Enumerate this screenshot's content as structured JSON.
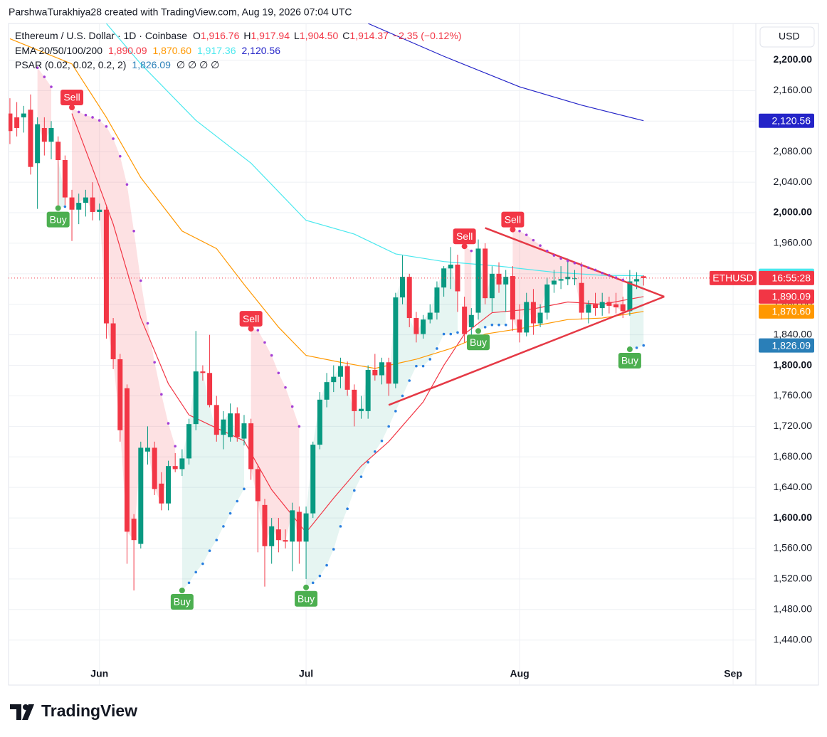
{
  "chart_data": {
    "type": "candlestick",
    "attribution": "ParshwaTurakhiya28 created with TradingView.com, Aug 19, 2026 07:04 UTC",
    "symbol": "Ethereum / U.S. Dollar · 1D · Coinbase",
    "ohlc": [
      {
        "key": "O",
        "value": 1916.76,
        "label": "1,916.76"
      },
      {
        "key": "H",
        "value": 1917.94,
        "label": "1,917.94"
      },
      {
        "key": "L",
        "value": 1904.5,
        "label": "1,904.50"
      },
      {
        "key": "C",
        "value": 1914.37,
        "label": "1,914.37"
      }
    ],
    "change": "−2.35 (−0.12%)",
    "ema_title": "EMA 20/50/100/200",
    "currency": "USD",
    "watermark": "TradingView",
    "ticker": "ETHUSD",
    "countdown": "16:55:28",
    "xlim": [
      -0.2,
      108.3
    ],
    "xticks": [
      {
        "value": 13,
        "label": "Jun"
      },
      {
        "value": 43,
        "label": "Jul"
      },
      {
        "value": 74,
        "label": "Aug"
      },
      {
        "value": 105,
        "label": "Sep"
      }
    ],
    "ylim": [
      1381,
      2248
    ],
    "yticks": [
      {
        "value": 1440,
        "label": "1,440.00"
      },
      {
        "value": 1480,
        "label": "1,480.00"
      },
      {
        "value": 1520,
        "label": "1,520.00"
      },
      {
        "value": 1560,
        "label": "1,560.00"
      },
      {
        "value": 1600,
        "label": "1,600.00"
      },
      {
        "value": 1640,
        "label": "1,640.00"
      },
      {
        "value": 1680,
        "label": "1,680.00"
      },
      {
        "value": 1720,
        "label": "1,720.00"
      },
      {
        "value": 1760,
        "label": "1,760.00"
      },
      {
        "value": 1800,
        "label": "1,800.00"
      },
      {
        "value": 1840,
        "label": "1,840.00"
      },
      {
        "value": 1880,
        "label": "1,880.00"
      },
      {
        "value": 1920,
        "label": "1,920.00"
      },
      {
        "value": 1960,
        "label": "1,960.00"
      },
      {
        "value": 2000,
        "label": "2,000.00"
      },
      {
        "value": 2040,
        "label": "2,040.00"
      },
      {
        "value": 2080,
        "label": "2,080.00"
      },
      {
        "value": 2120,
        "label": "2,120.00"
      },
      {
        "value": 2160,
        "label": "2,160.00"
      },
      {
        "value": 2200,
        "label": "2,200.00"
      }
    ],
    "grid": true,
    "candles": {
      "up_color": "#089981",
      "down_color": "#f23645",
      "open": [
        2130,
        2125,
        2125,
        2135,
        2065,
        2111,
        2093,
        2093,
        2069,
        2020,
        2004,
        2013,
        2020,
        2001,
        2004,
        1855,
        1808,
        1770,
        1599,
        1566,
        1687,
        1692,
        1645,
        1619,
        1668,
        1664,
        1678,
        1723,
        1792,
        1790,
        1748,
        1709,
        1706,
        1737,
        1704,
        1724,
        1664,
        1617,
        1563,
        1585,
        1571,
        1569,
        1608,
        1569,
        1606,
        1696,
        1755,
        1778,
        1785,
        1799,
        1768,
        1740,
        1740,
        1794,
        1787,
        1804,
        1776,
        1889,
        1916,
        1862,
        1841,
        1860,
        1869,
        1902,
        1927,
        1932,
        1877,
        1850,
        1869,
        1953,
        1888,
        1920,
        1906,
        1917,
        1860,
        1843,
        1883,
        1855,
        1869,
        1906,
        1911,
        1913,
        1914,
        1908,
        1869,
        1880,
        1875,
        1883,
        1880,
        1880,
        1871,
        1910,
        1916.76
      ],
      "high": [
        2150,
        2145,
        2140,
        2155,
        2125,
        2125,
        2120,
        2100,
        2075,
        2030,
        2025,
        2030,
        2040,
        2012,
        2008,
        1862,
        1815,
        1775,
        1605,
        1700,
        1720,
        1700,
        1660,
        1675,
        1685,
        1690,
        1730,
        1845,
        1800,
        1840,
        1760,
        1740,
        1750,
        1745,
        1735,
        1730,
        1670,
        1625,
        1600,
        1600,
        1585,
        1620,
        1615,
        1615,
        1700,
        1765,
        1790,
        1800,
        1810,
        1805,
        1775,
        1760,
        1800,
        1815,
        1810,
        1810,
        1895,
        1944,
        1920,
        1870,
        1866,
        1880,
        1910,
        1930,
        1955,
        1945,
        1890,
        1875,
        1965,
        1960,
        1930,
        1935,
        1925,
        1930,
        1880,
        1895,
        1900,
        1880,
        1915,
        1925,
        1930,
        1940,
        1925,
        1935,
        1885,
        1895,
        1895,
        1890,
        1895,
        1890,
        1925,
        1922,
        1917.94
      ],
      "low": [
        2090,
        2100,
        2105,
        2050,
        2005,
        2075,
        2070,
        2006,
        2010,
        1963,
        1985,
        1995,
        1990,
        1990,
        1835,
        1795,
        1700,
        1540,
        1505,
        1560,
        1670,
        1630,
        1610,
        1610,
        1660,
        1655,
        1670,
        1715,
        1780,
        1745,
        1700,
        1690,
        1700,
        1700,
        1695,
        1650,
        1555,
        1510,
        1540,
        1555,
        1560,
        1530,
        1540,
        1520,
        1600,
        1690,
        1745,
        1765,
        1770,
        1760,
        1720,
        1730,
        1730,
        1780,
        1775,
        1760,
        1770,
        1880,
        1850,
        1830,
        1835,
        1855,
        1860,
        1890,
        1900,
        1870,
        1830,
        1840,
        1860,
        1880,
        1870,
        1895,
        1870,
        1845,
        1830,
        1838,
        1840,
        1850,
        1860,
        1895,
        1900,
        1905,
        1905,
        1860,
        1855,
        1865,
        1865,
        1868,
        1868,
        1862,
        1865,
        1900,
        1904.5
      ],
      "close": [
        2107,
        2111,
        2130,
        2060,
        2116,
        2093,
        2111,
        2069,
        2020,
        2004,
        2013,
        2020,
        2001,
        2004,
        1855,
        1808,
        1715,
        1582,
        1571,
        1692,
        1692,
        1638,
        1619,
        1668,
        1664,
        1678,
        1723,
        1792,
        1790,
        1748,
        1709,
        1729,
        1737,
        1706,
        1724,
        1664,
        1622,
        1563,
        1589,
        1571,
        1569,
        1610,
        1569,
        1606,
        1696,
        1755,
        1778,
        1785,
        1799,
        1768,
        1740,
        1743,
        1794,
        1787,
        1804,
        1776,
        1889,
        1916,
        1862,
        1841,
        1860,
        1869,
        1902,
        1927,
        1932,
        1897,
        1841,
        1866,
        1953,
        1888,
        1920,
        1906,
        1916,
        1860,
        1843,
        1883,
        1855,
        1869,
        1906,
        1911,
        1913,
        1916,
        1914,
        1869,
        1880,
        1875,
        1883,
        1878,
        1876,
        1871,
        1910,
        1913,
        1914.37
      ]
    },
    "series": [
      {
        "color": "#f23645",
        "badge_text": "#ffffff",
        "value_label": "1,890.09",
        "x": [
          9,
          13,
          15,
          19,
          23,
          26,
          29,
          34,
          38,
          43,
          47,
          51,
          55,
          60,
          63,
          66,
          70,
          76,
          81,
          86,
          92
        ],
        "values": [
          2130,
          2034,
          1985,
          1862,
          1776,
          1735,
          1722,
          1701,
          1637,
          1581,
          1626,
          1668,
          1700,
          1752,
          1800,
          1841,
          1869,
          1874,
          1883,
          1880,
          1890.09
        ]
      },
      {
        "color": "#ff9800",
        "badge_text": "#ffffff",
        "value_label": "1,870.60",
        "x": [
          0,
          9,
          14,
          19,
          25,
          30,
          34,
          39,
          43,
          48,
          53,
          59,
          64,
          69,
          74,
          81,
          86,
          92
        ],
        "values": [
          2228,
          2195,
          2125,
          2046,
          1976,
          1953,
          1906,
          1850,
          1813,
          1804,
          1796,
          1808,
          1822,
          1841,
          1848,
          1860,
          1862,
          1870.6
        ]
      },
      {
        "color": "#4ae8ee",
        "badge_text": "#131722",
        "value_label": "1,917.36",
        "x": [
          14,
          19,
          27,
          35,
          43,
          50,
          56,
          63,
          71,
          79,
          86,
          92
        ],
        "values": [
          2248,
          2195,
          2121,
          2065,
          1990,
          1972,
          1946,
          1936,
          1930,
          1922,
          1918,
          1917.36
        ]
      },
      {
        "color": "#2424c8",
        "badge_text": "#ffffff",
        "value_label": "2,120.56",
        "x": [
          52,
          63,
          74,
          83,
          92
        ],
        "values": [
          2248,
          2205,
          2165,
          2141,
          2120.56
        ]
      }
    ],
    "psar": {
      "title": "PSAR (0.02, 0.02, 0.2, 2)",
      "value_label": "1,826.09",
      "nulls": "∅ ∅ ∅ ∅",
      "color": "#2a7fb8",
      "above_color": "#a43fd6",
      "below_color": "#2a7fe0",
      "segments": [
        {
          "x": [
            4,
            5,
            6
          ],
          "values": [
            2190,
            2178,
            2165
          ]
        },
        {
          "signal": "Buy",
          "x": [
            7,
            8
          ],
          "values": [
            2006,
            2008
          ]
        },
        {
          "signal": "Sell",
          "x": [
            9,
            10,
            11,
            12,
            13,
            14,
            15,
            16,
            17,
            18,
            19,
            20,
            21,
            22,
            23,
            24
          ],
          "values": [
            2138,
            2132,
            2128,
            2125,
            2121,
            2113,
            2097,
            2074,
            2037,
            1976,
            1911,
            1855,
            1804,
            1762,
            1724,
            1694
          ]
        },
        {
          "signal": "Buy",
          "x": [
            25,
            26,
            27,
            28,
            29,
            30,
            31,
            32,
            33,
            34
          ],
          "values": [
            1505,
            1515,
            1529,
            1540,
            1557,
            1571,
            1589,
            1606,
            1622,
            1638
          ]
        },
        {
          "signal": "Sell",
          "x": [
            35,
            36,
            37,
            38,
            39,
            40,
            41,
            42
          ],
          "values": [
            1848,
            1846,
            1830,
            1813,
            1790,
            1771,
            1746,
            1720
          ]
        },
        {
          "signal": "Buy",
          "x": [
            43,
            44,
            45,
            46,
            47,
            48,
            49,
            50,
            51,
            52,
            53,
            54,
            55,
            56,
            57,
            58,
            59,
            60,
            61,
            62,
            63,
            64,
            65
          ],
          "values": [
            1509,
            1515,
            1524,
            1538,
            1559,
            1589,
            1612,
            1636,
            1654,
            1673,
            1687,
            1701,
            1720,
            1740,
            1760,
            1780,
            1799,
            1799,
            1808,
            1822,
            1841,
            1841,
            1843
          ]
        },
        {
          "signal": "Sell",
          "x": [
            66,
            67
          ],
          "values": [
            1956,
            1950
          ]
        },
        {
          "signal": "Buy",
          "x": [
            68,
            69,
            70,
            71,
            72
          ],
          "values": [
            1845,
            1850,
            1853,
            1853,
            1853
          ]
        },
        {
          "signal": "Sell",
          "x": [
            73,
            74,
            75,
            76,
            77,
            78,
            79,
            80,
            81,
            82,
            83,
            84,
            85,
            86,
            87,
            88,
            89
          ],
          "values": [
            1978,
            1976,
            1971,
            1964,
            1957,
            1950,
            1944,
            1940,
            1937,
            1934,
            1931,
            1928,
            1925,
            1921,
            1918,
            1915,
            1912
          ]
        },
        {
          "signal": "Buy",
          "x": [
            90,
            91,
            92
          ],
          "values": [
            1821,
            1823,
            1826.09
          ]
        }
      ]
    },
    "trendlines": {
      "color": "#e53945",
      "lines": [
        {
          "x": [
            55,
            95
          ],
          "values": [
            1748,
            1890
          ]
        },
        {
          "x": [
            69,
            95
          ],
          "values": [
            1980,
            1890
          ]
        }
      ]
    }
  }
}
